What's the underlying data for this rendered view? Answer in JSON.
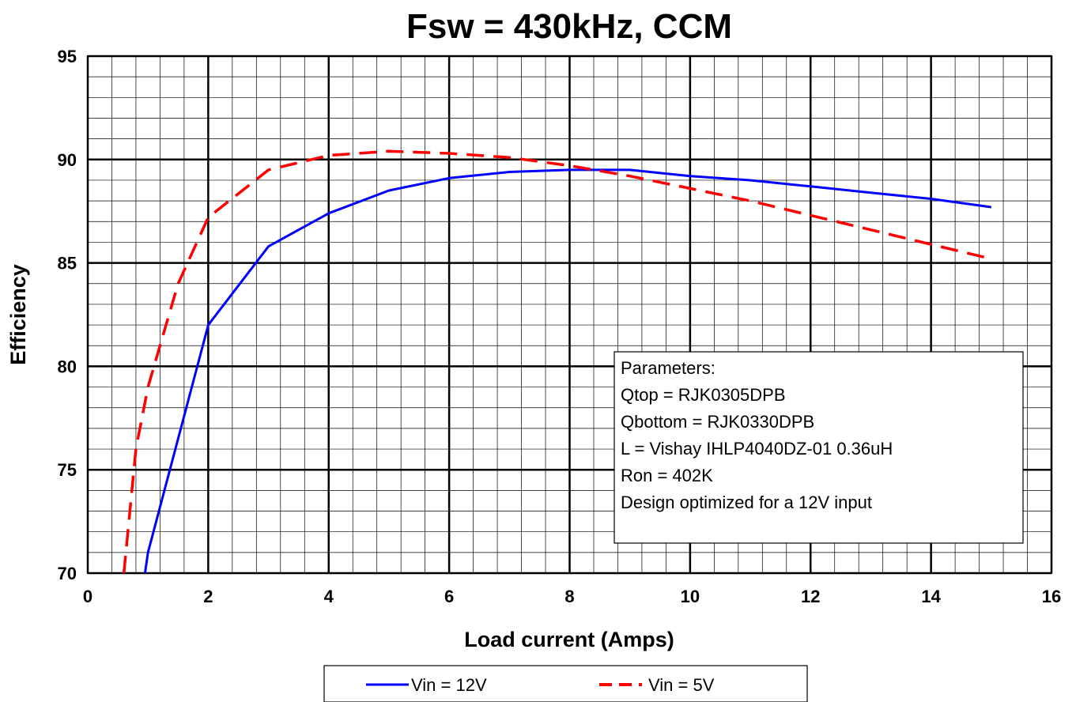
{
  "chart_data": {
    "type": "line",
    "title": "Fsw = 430kHz, CCM",
    "xlabel": "Load current (Amps)",
    "ylabel": "Efficiency",
    "xlim": [
      0,
      16
    ],
    "ylim": [
      70,
      95
    ],
    "x_major_step": 2,
    "x_minor_step": 0.4,
    "y_major_step": 5,
    "y_minor_step": 1,
    "grid": true,
    "legend_position": "bottom",
    "series": [
      {
        "name": "Vin = 12V",
        "color": "#0000ff",
        "dash": "solid",
        "x": [
          0.95,
          1.0,
          2.0,
          3.0,
          4.0,
          5.0,
          6.0,
          7.0,
          8.0,
          9.0,
          10.0,
          11.0,
          12.0,
          13.0,
          14.0,
          15.0
        ],
        "y": [
          70.0,
          71.0,
          82.0,
          85.8,
          87.4,
          88.5,
          89.1,
          89.4,
          89.5,
          89.5,
          89.2,
          89.0,
          88.7,
          88.4,
          88.1,
          87.7
        ]
      },
      {
        "name": "Vin = 5V",
        "color": "#ff0000",
        "dash": "dashed",
        "x": [
          0.6,
          0.7,
          0.8,
          1.0,
          1.2,
          1.5,
          2.0,
          3.0,
          4.0,
          5.0,
          6.0,
          7.0,
          8.0,
          9.0,
          10.0,
          11.0,
          12.0,
          13.0,
          14.0,
          15.0
        ],
        "y": [
          70.0,
          73.0,
          76.0,
          79.0,
          81.0,
          84.0,
          87.2,
          89.5,
          90.2,
          90.4,
          90.3,
          90.1,
          89.7,
          89.2,
          88.6,
          88.0,
          87.3,
          86.6,
          85.9,
          85.2
        ]
      }
    ],
    "annotation": {
      "lines": [
        "Parameters:",
        "Qtop = RJK0305DPB",
        "Qbottom = RJK0330DPB",
        "L = Vishay IHLP4040DZ-01 0.36uH",
        "Ron = 402K",
        "Design optimized for a 12V input"
      ]
    }
  }
}
